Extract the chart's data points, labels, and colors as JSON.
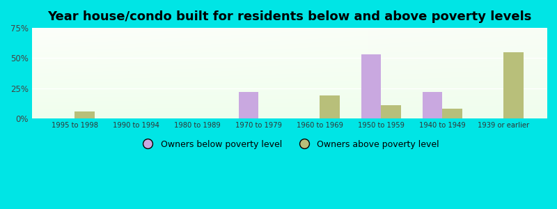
{
  "title": "Year house/condo built for residents below and above poverty levels",
  "categories": [
    "1995 to 1998",
    "1990 to 1994",
    "1980 to 1989",
    "1970 to 1979",
    "1960 to 1969",
    "1950 to 1959",
    "1940 to 1949",
    "1939 or earlier"
  ],
  "below_poverty": [
    0,
    0,
    0,
    22,
    0,
    53,
    22,
    0
  ],
  "above_poverty": [
    6,
    0,
    0,
    0,
    19,
    11,
    8,
    55
  ],
  "color_below": "#c9a8e0",
  "color_above": "#b8bf7a",
  "ylim": [
    0,
    75
  ],
  "yticks": [
    0,
    25,
    50,
    75
  ],
  "ytick_labels": [
    "0%",
    "25%",
    "50%",
    "75%"
  ],
  "legend_below": "Owners below poverty level",
  "legend_above": "Owners above poverty level",
  "background_outer": "#00e5e5",
  "bar_width": 0.32,
  "title_fontsize": 13
}
